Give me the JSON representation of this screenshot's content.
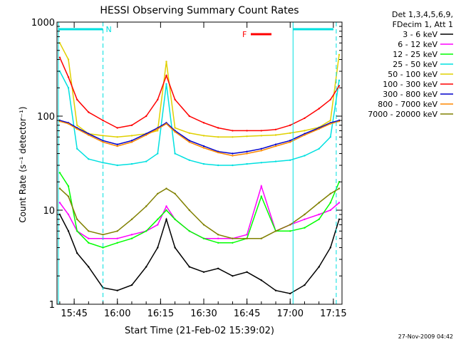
{
  "chart_data": {
    "type": "line",
    "title": "HESSI Observing Summary Count Rates",
    "xlabel": "Start Time (21-Feb-02 15:39:02)",
    "ylabel": "Count Rate (s⁻¹ detector⁻¹)",
    "ylog": true,
    "ylim": [
      1,
      1000
    ],
    "xlim": [
      "15:39:02",
      "17:18:00"
    ],
    "x_ticks": [
      "15:45",
      "16:00",
      "16:15",
      "16:30",
      "16:45",
      "17:00",
      "17:15"
    ],
    "y_ticks": [
      "1",
      "10",
      "100",
      "1000"
    ],
    "legend_header": [
      "Det 1,3,4,5,6,9,",
      "FDecim 1, Att 1"
    ],
    "legend_position": "right",
    "footer_date": "27-Nov-2009 04:42",
    "markers": [
      {
        "label": "N",
        "type": "night",
        "color": "#00e0e0"
      },
      {
        "label": "F",
        "type": "flare",
        "color": "#ff0000"
      }
    ],
    "series": [
      {
        "name": "3 - 6 keV",
        "color": "#000000",
        "x": [
          "15:40",
          "15:43",
          "15:46",
          "15:50",
          "15:55",
          "16:00",
          "16:05",
          "16:10",
          "16:14",
          "16:17",
          "16:20",
          "16:25",
          "16:30",
          "16:35",
          "16:40",
          "16:45",
          "16:50",
          "16:55",
          "17:00",
          "17:05",
          "17:10",
          "17:14",
          "17:17"
        ],
        "y": [
          9,
          6,
          3.5,
          2.5,
          1.5,
          1.4,
          1.6,
          2.5,
          4,
          8,
          4,
          2.5,
          2.2,
          2.4,
          2,
          2.2,
          1.8,
          1.4,
          1.3,
          1.6,
          2.5,
          4,
          8
        ]
      },
      {
        "name": "6 - 12 keV",
        "color": "#ff00ff",
        "x": [
          "15:40",
          "15:43",
          "15:46",
          "15:50",
          "15:55",
          "16:00",
          "16:05",
          "16:10",
          "16:14",
          "16:17",
          "16:20",
          "16:25",
          "16:30",
          "16:35",
          "16:40",
          "16:45",
          "16:50",
          "16:55",
          "17:00",
          "17:05",
          "17:10",
          "17:14",
          "17:17"
        ],
        "y": [
          12,
          9,
          6,
          5,
          5,
          5,
          5.5,
          6,
          7,
          11,
          8,
          6,
          5,
          5,
          5,
          5.5,
          18,
          6,
          7,
          8,
          9,
          10,
          12
        ]
      },
      {
        "name": "12 - 25 keV",
        "color": "#00ff00",
        "x": [
          "15:40",
          "15:43",
          "15:46",
          "15:50",
          "15:55",
          "16:00",
          "16:05",
          "16:10",
          "16:14",
          "16:17",
          "16:20",
          "16:25",
          "16:30",
          "16:35",
          "16:40",
          "16:45",
          "16:50",
          "16:55",
          "17:00",
          "17:05",
          "17:10",
          "17:14",
          "17:17"
        ],
        "y": [
          25,
          18,
          6,
          4.5,
          4,
          4.5,
          5,
          6,
          8,
          10,
          8,
          6,
          5,
          4.5,
          4.5,
          5,
          14,
          6,
          6,
          6.5,
          8,
          12,
          20
        ]
      },
      {
        "name": "25 - 50 keV",
        "color": "#00e0e0",
        "x": [
          "15:40",
          "15:43",
          "15:46",
          "15:50",
          "15:55",
          "16:00",
          "16:05",
          "16:10",
          "16:14",
          "16:17",
          "16:20",
          "16:25",
          "16:30",
          "16:35",
          "16:40",
          "16:45",
          "16:50",
          "16:55",
          "17:00",
          "17:05",
          "17:10",
          "17:14",
          "17:17"
        ],
        "y": [
          300,
          200,
          45,
          35,
          32,
          30,
          31,
          33,
          40,
          220,
          40,
          34,
          31,
          30,
          30,
          31,
          32,
          33,
          34,
          38,
          45,
          60,
          240
        ]
      },
      {
        "name": "50 - 100 keV",
        "color": "#e0d000",
        "x": [
          "15:40",
          "15:43",
          "15:46",
          "15:50",
          "15:55",
          "16:00",
          "16:05",
          "16:10",
          "16:14",
          "16:17",
          "16:20",
          "16:25",
          "16:30",
          "16:35",
          "16:40",
          "16:45",
          "16:50",
          "16:55",
          "17:00",
          "17:05",
          "17:10",
          "17:14",
          "17:17"
        ],
        "y": [
          600,
          400,
          80,
          65,
          62,
          60,
          62,
          65,
          70,
          380,
          75,
          66,
          62,
          60,
          60,
          61,
          62,
          63,
          66,
          70,
          76,
          90,
          450
        ]
      },
      {
        "name": "100 - 300 keV",
        "color": "#ff0000",
        "x": [
          "15:40",
          "15:43",
          "15:46",
          "15:50",
          "15:55",
          "16:00",
          "16:05",
          "16:10",
          "16:14",
          "16:17",
          "16:20",
          "16:25",
          "16:30",
          "16:35",
          "16:40",
          "16:45",
          "16:50",
          "16:55",
          "17:00",
          "17:05",
          "17:10",
          "17:14",
          "17:17"
        ],
        "y": [
          420,
          260,
          150,
          110,
          90,
          75,
          80,
          100,
          150,
          270,
          150,
          100,
          85,
          75,
          70,
          70,
          70,
          72,
          80,
          95,
          120,
          150,
          210
        ]
      },
      {
        "name": "300 - 800 keV",
        "color": "#0000cc",
        "x": [
          "15:40",
          "15:43",
          "15:46",
          "15:50",
          "15:55",
          "16:00",
          "16:05",
          "16:10",
          "16:14",
          "16:17",
          "16:20",
          "16:25",
          "16:30",
          "16:35",
          "16:40",
          "16:45",
          "16:50",
          "16:55",
          "17:00",
          "17:05",
          "17:10",
          "17:14",
          "17:17"
        ],
        "y": [
          90,
          85,
          75,
          65,
          55,
          50,
          55,
          65,
          75,
          85,
          70,
          55,
          48,
          42,
          40,
          42,
          45,
          50,
          55,
          65,
          75,
          85,
          90
        ]
      },
      {
        "name": "800 - 7000 keV",
        "color": "#ff8800",
        "x": [
          "15:40",
          "15:43",
          "15:46",
          "15:50",
          "15:55",
          "16:00",
          "16:05",
          "16:10",
          "16:14",
          "16:17",
          "16:20",
          "16:25",
          "16:30",
          "16:35",
          "16:40",
          "16:45",
          "16:50",
          "16:55",
          "17:00",
          "17:05",
          "17:10",
          "17:14",
          "17:17"
        ],
        "y": [
          88,
          83,
          73,
          63,
          53,
          48,
          53,
          63,
          73,
          83,
          68,
          53,
          46,
          41,
          38,
          40,
          43,
          48,
          53,
          63,
          73,
          83,
          88
        ]
      },
      {
        "name": "7000 - 20000 keV",
        "color": "#808000",
        "x": [
          "15:40",
          "15:43",
          "15:46",
          "15:50",
          "15:55",
          "16:00",
          "16:05",
          "16:10",
          "16:14",
          "16:17",
          "16:20",
          "16:25",
          "16:30",
          "16:35",
          "16:40",
          "16:45",
          "16:50",
          "16:55",
          "17:00",
          "17:05",
          "17:10",
          "17:14",
          "17:17"
        ],
        "y": [
          17,
          14,
          8,
          6,
          5.5,
          6,
          8,
          11,
          15,
          17,
          15,
          10,
          7,
          5.5,
          5,
          5,
          5,
          6,
          7,
          9,
          12,
          15,
          17
        ]
      }
    ]
  }
}
